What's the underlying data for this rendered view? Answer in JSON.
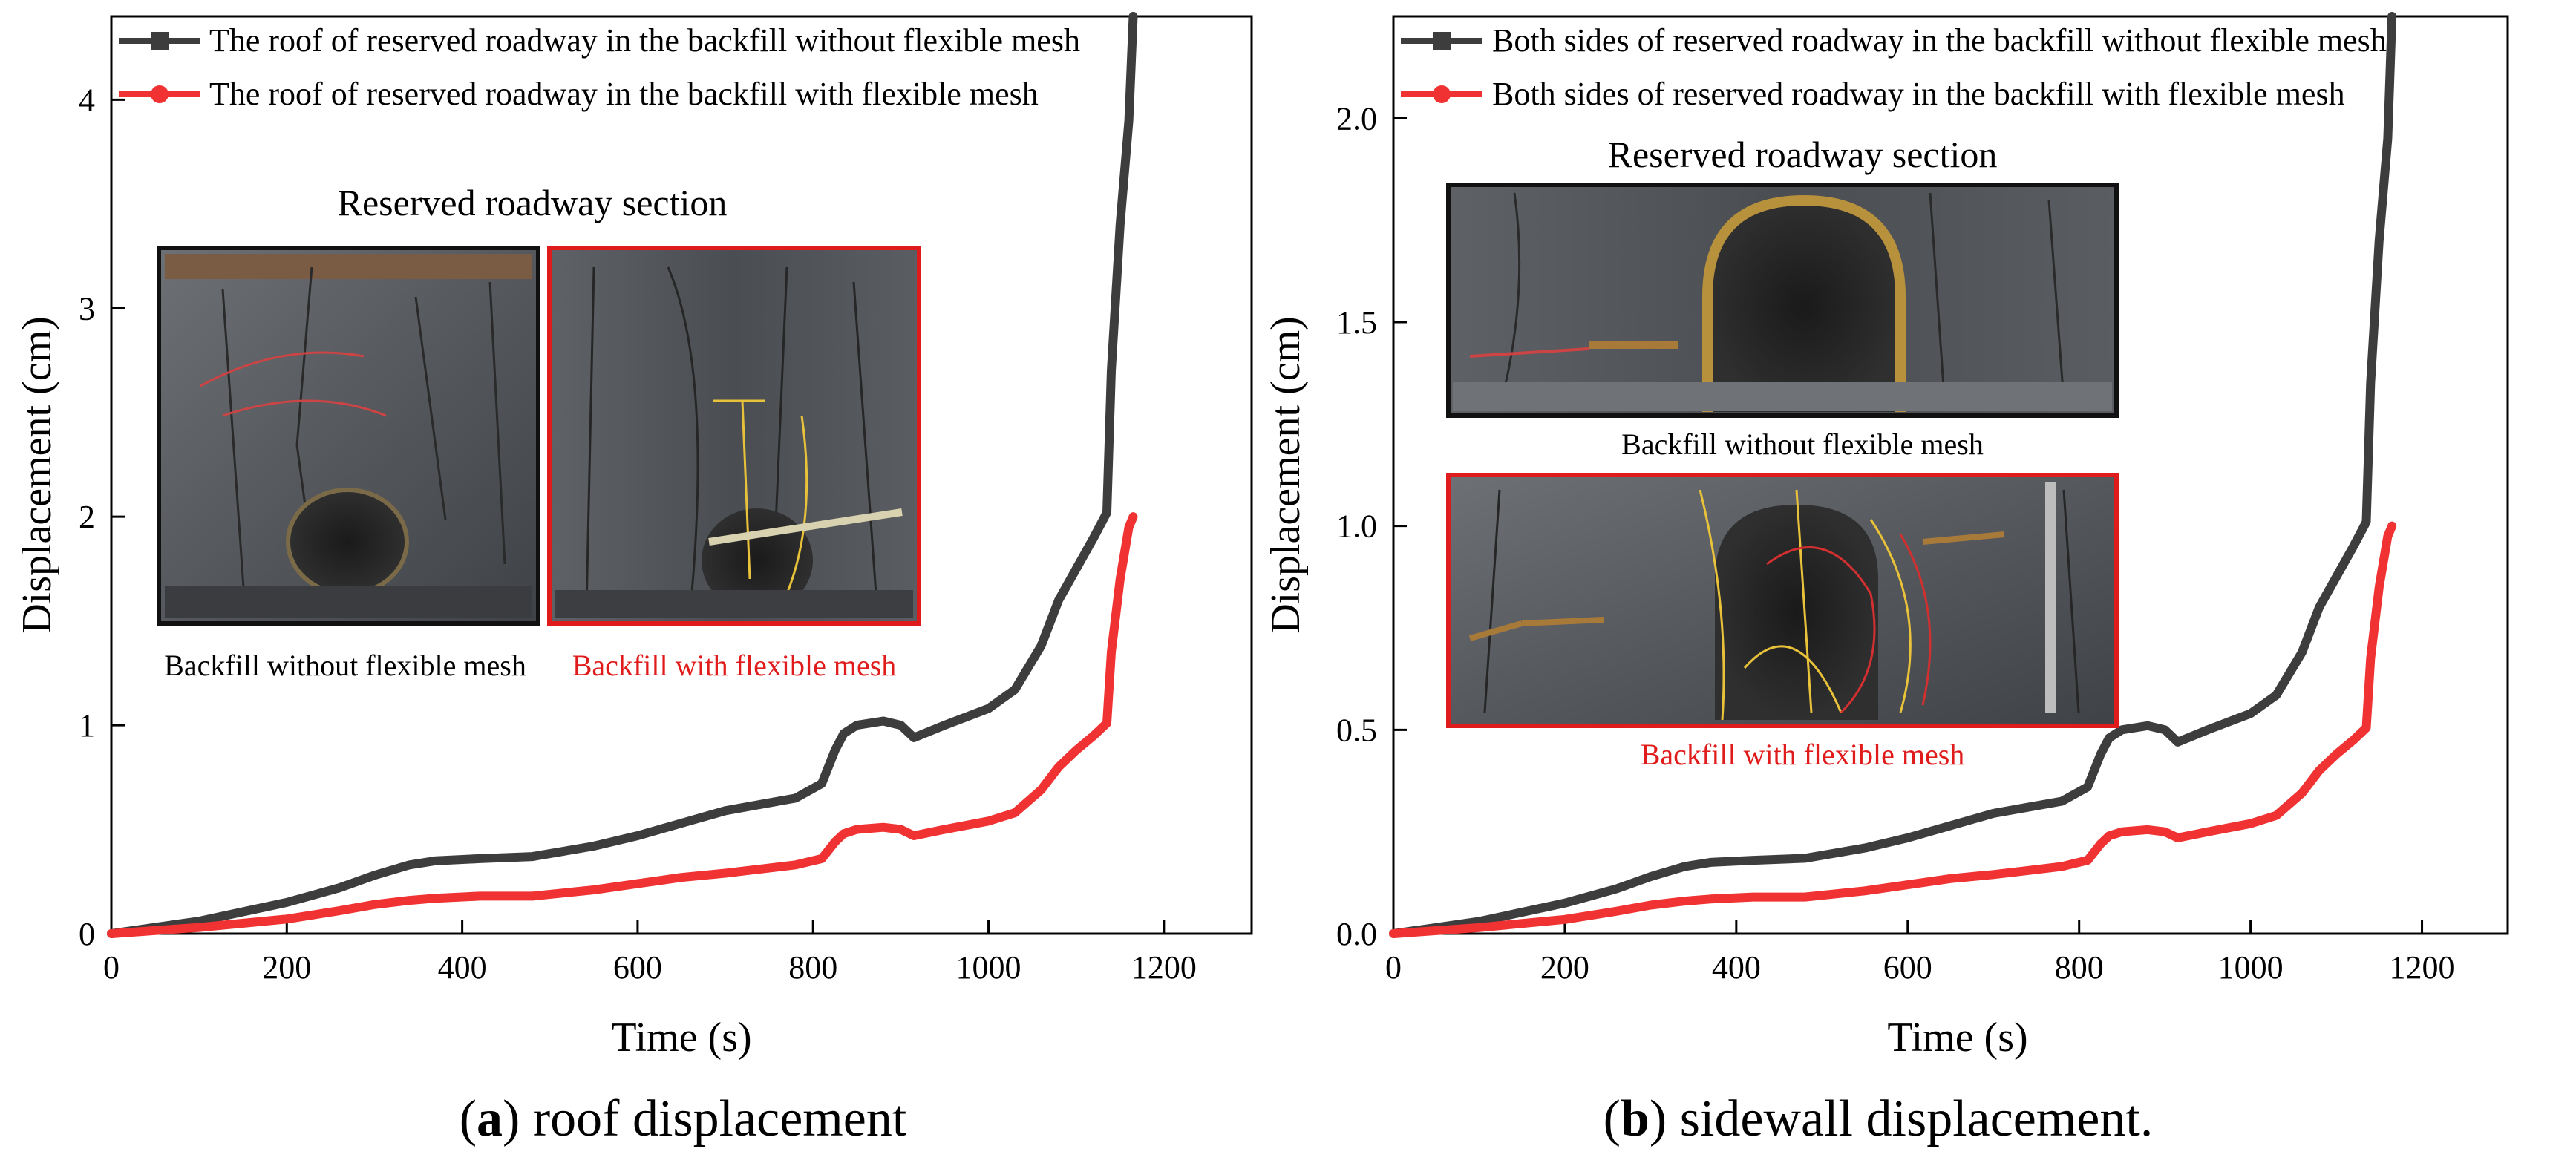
{
  "colors": {
    "without": "#3d3d3d",
    "with": "#f03232",
    "axis": "#000000",
    "frame_black": "#111111",
    "frame_red": "#e01b1b"
  },
  "chart_data": [
    {
      "type": "line",
      "caption_letter": "a",
      "caption_text": ") roof displacement",
      "xlabel": "Time (s)",
      "ylabel": "Displacement (cm)",
      "xlim": [
        0,
        1300
      ],
      "ylim": [
        0,
        4.4
      ],
      "xticks": [
        "0",
        "200",
        "400",
        "600",
        "800",
        "1000",
        "1200"
      ],
      "xtick_values": [
        0,
        200,
        400,
        600,
        800,
        1000,
        1200
      ],
      "yticks": [
        "0",
        "1",
        "2",
        "3",
        "4"
      ],
      "ytick_values": [
        0,
        1,
        2,
        3,
        4
      ],
      "grid": false,
      "legend": "top",
      "inset": {
        "title": "Reserved roadway section",
        "photo_left_label": "Backfill without flexible mesh",
        "photo_right_label": "Backfill with flexible mesh"
      },
      "series": [
        {
          "name": "The roof of reserved roadway in the backfill without flexible mesh",
          "x": [
            0,
            100,
            200,
            260,
            300,
            340,
            370,
            420,
            480,
            550,
            600,
            650,
            700,
            740,
            780,
            810,
            825,
            835,
            850,
            880,
            900,
            915,
            950,
            1000,
            1030,
            1060,
            1080,
            1100,
            1120,
            1135,
            1140,
            1150,
            1160,
            1165
          ],
          "y": [
            0,
            0.06,
            0.15,
            0.22,
            0.28,
            0.33,
            0.35,
            0.36,
            0.37,
            0.42,
            0.47,
            0.53,
            0.59,
            0.62,
            0.65,
            0.72,
            0.88,
            0.96,
            1.0,
            1.02,
            1.0,
            0.94,
            1.0,
            1.08,
            1.17,
            1.38,
            1.6,
            1.75,
            1.9,
            2.02,
            2.7,
            3.4,
            3.9,
            4.4
          ]
        },
        {
          "name": "The roof of reserved roadway in the backfill with flexible mesh",
          "x": [
            0,
            100,
            200,
            260,
            300,
            340,
            370,
            420,
            480,
            550,
            600,
            650,
            700,
            740,
            780,
            810,
            825,
            835,
            850,
            880,
            900,
            915,
            950,
            1000,
            1030,
            1060,
            1080,
            1100,
            1120,
            1135,
            1140,
            1150,
            1160,
            1165
          ],
          "y": [
            0,
            0.03,
            0.07,
            0.11,
            0.14,
            0.16,
            0.17,
            0.18,
            0.18,
            0.21,
            0.24,
            0.27,
            0.29,
            0.31,
            0.33,
            0.36,
            0.44,
            0.48,
            0.5,
            0.51,
            0.5,
            0.47,
            0.5,
            0.54,
            0.58,
            0.69,
            0.8,
            0.88,
            0.95,
            1.01,
            1.35,
            1.7,
            1.95,
            2.0
          ]
        }
      ]
    },
    {
      "type": "line",
      "caption_letter": "b",
      "caption_text": ") sidewall displacement.",
      "xlabel": "Time (s)",
      "ylabel": "Displacement (cm)",
      "xlim": [
        0,
        1300
      ],
      "ylim": [
        0,
        2.25
      ],
      "xticks": [
        "0",
        "200",
        "400",
        "600",
        "800",
        "1000",
        "1200"
      ],
      "xtick_values": [
        0,
        200,
        400,
        600,
        800,
        1000,
        1200
      ],
      "yticks": [
        "0.0",
        "0.5",
        "1.0",
        "1.5",
        "2.0"
      ],
      "ytick_values": [
        0,
        0.5,
        1.0,
        1.5,
        2.0
      ],
      "grid": false,
      "legend": "top",
      "inset": {
        "title": "Reserved roadway section",
        "photo_top_label": "Backfill without flexible mesh",
        "photo_bottom_label": "Backfill with flexible mesh"
      },
      "series": [
        {
          "name": "Both sides of reserved roadway in the backfill without flexible mesh",
          "x": [
            0,
            100,
            200,
            260,
            300,
            340,
            370,
            420,
            480,
            550,
            600,
            650,
            700,
            740,
            780,
            810,
            825,
            835,
            850,
            880,
            900,
            915,
            950,
            1000,
            1030,
            1060,
            1080,
            1100,
            1120,
            1135,
            1140,
            1150,
            1160,
            1165
          ],
          "y": [
            0,
            0.03,
            0.075,
            0.11,
            0.14,
            0.165,
            0.175,
            0.18,
            0.185,
            0.21,
            0.235,
            0.265,
            0.295,
            0.31,
            0.325,
            0.36,
            0.44,
            0.48,
            0.5,
            0.51,
            0.5,
            0.47,
            0.5,
            0.54,
            0.585,
            0.69,
            0.8,
            0.875,
            0.95,
            1.01,
            1.35,
            1.7,
            1.95,
            2.25
          ]
        },
        {
          "name": "Both sides of reserved roadway in the backfill with flexible mesh",
          "x": [
            0,
            100,
            200,
            260,
            300,
            340,
            370,
            420,
            480,
            550,
            600,
            650,
            700,
            740,
            780,
            810,
            825,
            835,
            850,
            880,
            900,
            915,
            950,
            1000,
            1030,
            1060,
            1080,
            1100,
            1120,
            1135,
            1140,
            1150,
            1160,
            1165
          ],
          "y": [
            0,
            0.015,
            0.035,
            0.055,
            0.07,
            0.08,
            0.085,
            0.09,
            0.09,
            0.105,
            0.12,
            0.135,
            0.145,
            0.155,
            0.165,
            0.18,
            0.22,
            0.24,
            0.25,
            0.255,
            0.25,
            0.235,
            0.25,
            0.27,
            0.29,
            0.345,
            0.4,
            0.44,
            0.475,
            0.505,
            0.675,
            0.85,
            0.975,
            1.0
          ]
        }
      ]
    }
  ]
}
